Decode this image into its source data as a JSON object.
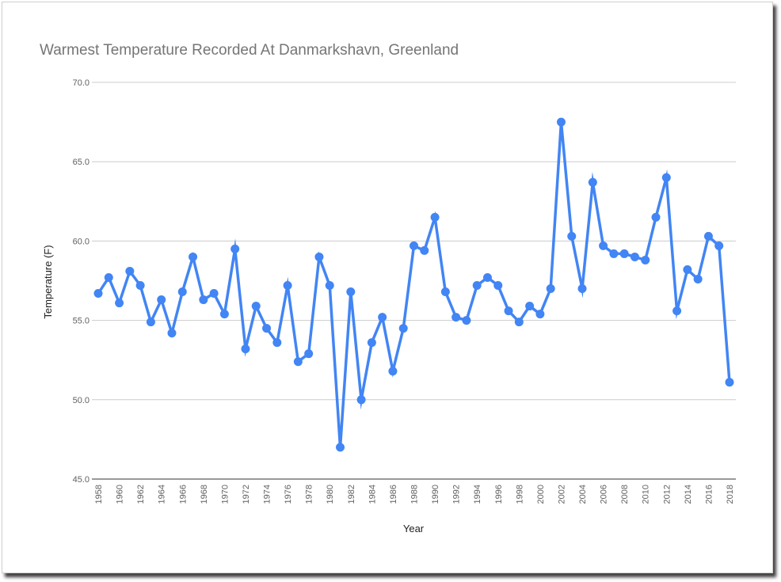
{
  "chart_data": {
    "type": "line",
    "title": "Warmest Temperature Recorded At Danmarkshavn, Greenland",
    "xlabel": "Year",
    "ylabel": "Temperature (F)",
    "ylim": [
      45.0,
      70.0
    ],
    "yticks": [
      "45.0",
      "50.0",
      "55.0",
      "60.0",
      "65.0",
      "70.0"
    ],
    "xlim": [
      1958,
      2018
    ],
    "xticks": [
      "1958",
      "1960",
      "1962",
      "1964",
      "1966",
      "1968",
      "1970",
      "1972",
      "1974",
      "1976",
      "1978",
      "1980",
      "1982",
      "1984",
      "1986",
      "1988",
      "1990",
      "1992",
      "1994",
      "1996",
      "1998",
      "2000",
      "2002",
      "2004",
      "2006",
      "2008",
      "2010",
      "2012",
      "2014",
      "2016",
      "2018"
    ],
    "grid": true,
    "legend": "none",
    "series_color": "#4285f4",
    "x": [
      1958,
      1959,
      1960,
      1961,
      1962,
      1963,
      1964,
      1965,
      1966,
      1967,
      1968,
      1969,
      1970,
      1971,
      1972,
      1973,
      1974,
      1975,
      1976,
      1977,
      1978,
      1979,
      1980,
      1981,
      1982,
      1983,
      1984,
      1985,
      1986,
      1987,
      1988,
      1989,
      1990,
      1991,
      1992,
      1993,
      1994,
      1995,
      1996,
      1997,
      1998,
      1999,
      2000,
      2001,
      2002,
      2003,
      2004,
      2005,
      2006,
      2007,
      2008,
      2009,
      2010,
      2011,
      2012,
      2013,
      2014,
      2015,
      2016,
      2017,
      2018
    ],
    "y": [
      56.7,
      57.7,
      56.1,
      58.1,
      57.2,
      54.9,
      56.3,
      54.2,
      56.8,
      59.0,
      56.3,
      56.7,
      55.4,
      59.5,
      53.2,
      55.9,
      54.5,
      53.6,
      57.2,
      52.4,
      52.9,
      59.0,
      57.2,
      47.0,
      56.8,
      50.0,
      53.6,
      55.2,
      51.8,
      54.5,
      59.7,
      59.4,
      61.5,
      56.8,
      55.2,
      55.0,
      57.2,
      57.7,
      57.2,
      55.6,
      54.9,
      55.9,
      55.4,
      57.0,
      67.5,
      60.3,
      57.0,
      63.7,
      59.7,
      59.2,
      59.2,
      59.0,
      58.8,
      61.5,
      64.0,
      55.6,
      58.2,
      57.6,
      60.3,
      59.7,
      51.1
    ]
  }
}
